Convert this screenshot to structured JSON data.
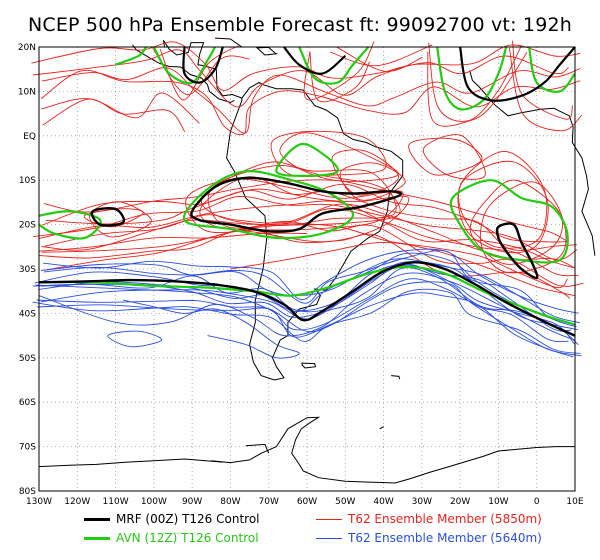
{
  "title": "NCEP 500 hPa Ensemble Forecast  ft: 99092700 vt: 192h",
  "map": {
    "lon_range": [
      -130,
      10
    ],
    "lat_range": [
      -80,
      20
    ],
    "lon_ticks": [
      "130W",
      "120W",
      "110W",
      "100W",
      "90W",
      "80W",
      "70W",
      "60W",
      "50W",
      "40W",
      "30W",
      "20W",
      "10W",
      "0",
      "10E"
    ],
    "lat_ticks": [
      "20N",
      "10N",
      "EQ",
      "10S",
      "20S",
      "30S",
      "40S",
      "50S",
      "60S",
      "70S",
      "80S"
    ],
    "grid": "dotted"
  },
  "legend": [
    {
      "label": "MRF (00Z) T126 Control",
      "color": "#000000"
    },
    {
      "label": "T62 Ensemble Member (5850m)",
      "color": "#e8231c"
    },
    {
      "label": "AVN (12Z) T126 Control",
      "color": "#22cc11"
    },
    {
      "label": "T62 Ensemble Member (5640m)",
      "color": "#2a4ee0"
    }
  ],
  "colors": {
    "red": "#e8231c",
    "blue": "#2a4ee0",
    "green": "#22cc11",
    "black": "#000000",
    "coast": "#000000"
  }
}
